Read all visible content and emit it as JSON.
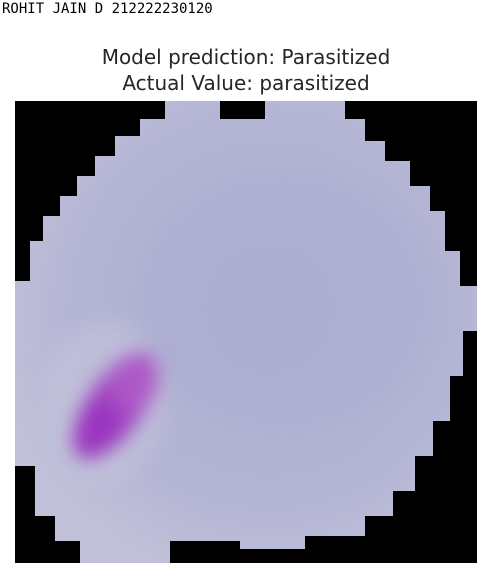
{
  "cell_output": {
    "printed_line": "ROHIT JAIN D 212222230120"
  },
  "figure": {
    "title_line_1": "Model prediction: Parasitized",
    "title_line_2": "Actual Value: parasitized"
  },
  "image": {
    "subject": "blood-cell-micrograph",
    "colors": {
      "background": "#000000",
      "cell": "#b8b8d6",
      "stain": "#a040c0"
    }
  }
}
